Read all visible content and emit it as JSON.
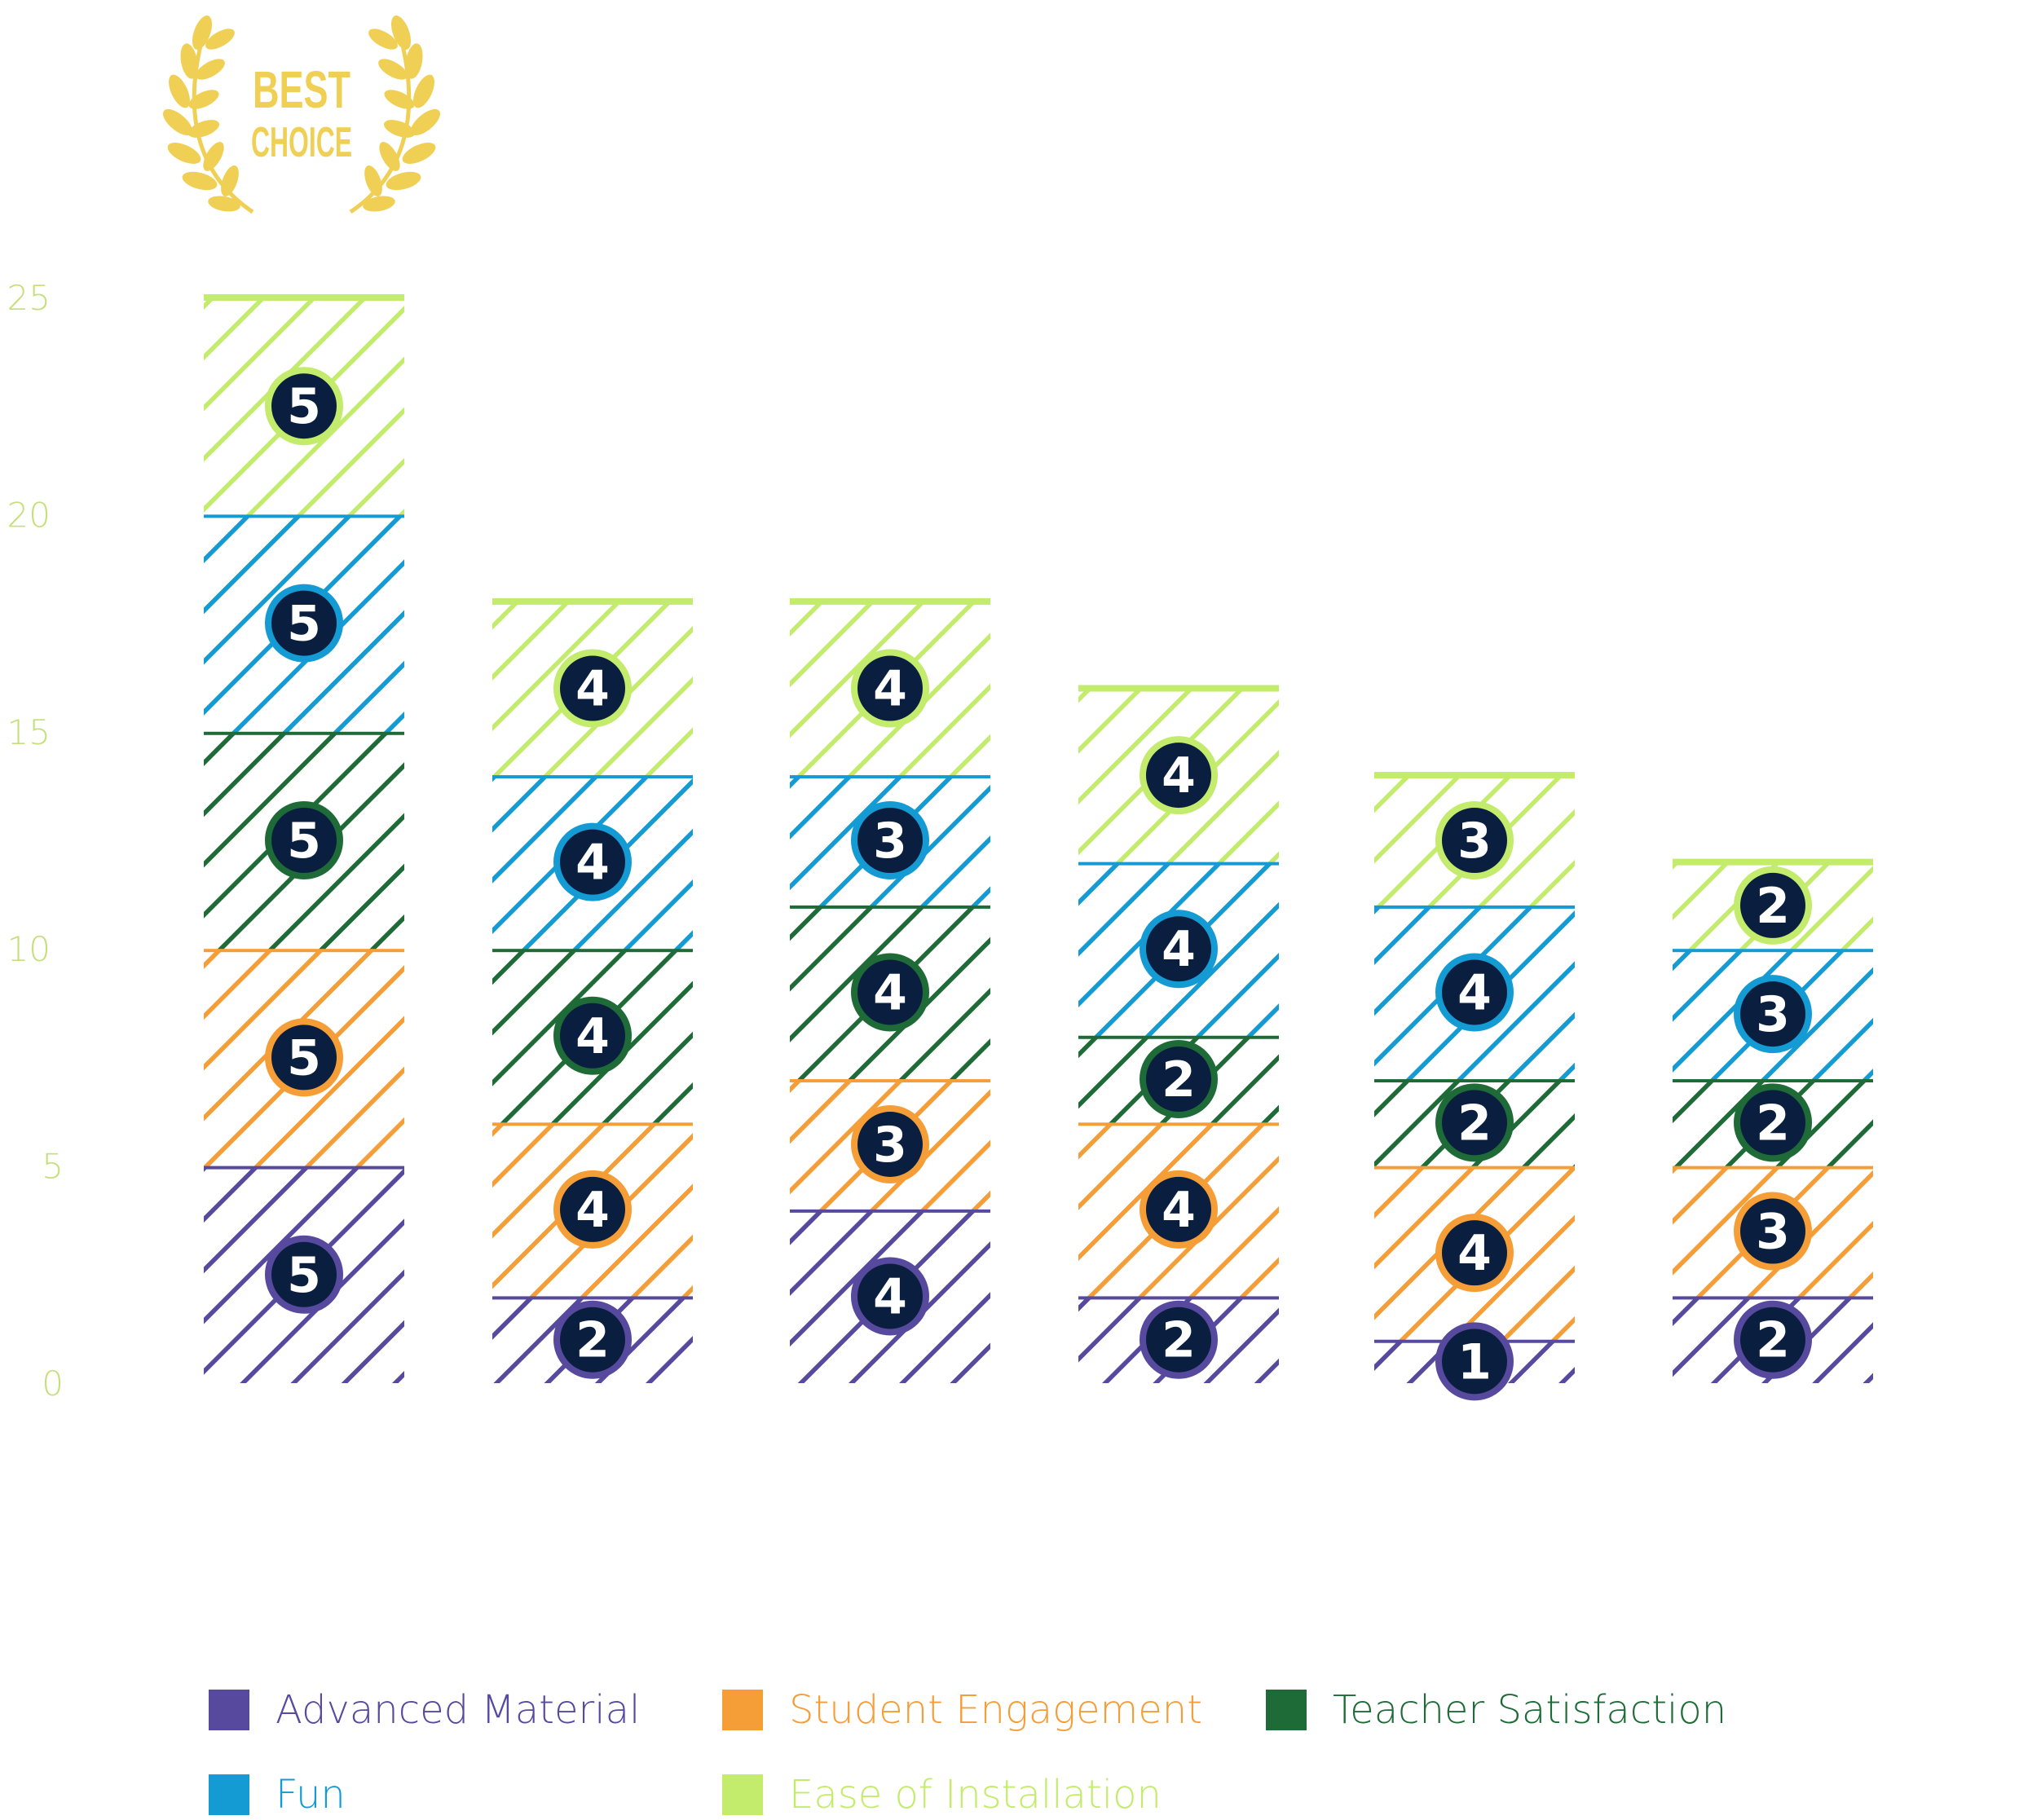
{
  "award": {
    "line1": "BEST",
    "line2": "CHOICE",
    "color": "#f0d054"
  },
  "chart_data": {
    "type": "bar",
    "stacked": true,
    "title": "",
    "xlabel": "",
    "ylabel": "",
    "ylim": [
      0,
      25
    ],
    "yticks": [
      0,
      5,
      10,
      15,
      20,
      25
    ],
    "ytick_labels": [
      "0",
      "5",
      "10",
      "15",
      "20",
      "25"
    ],
    "categories": [
      "",
      "",
      "",
      "",
      "",
      ""
    ],
    "grid": false,
    "legend_position": "bottom",
    "series": [
      {
        "name": "Advanced Material",
        "color": "#574a9e",
        "values": [
          5,
          2,
          4,
          2,
          1,
          2
        ]
      },
      {
        "name": "Student Engagement",
        "color": "#f59e38",
        "values": [
          5,
          4,
          3,
          4,
          4,
          3
        ]
      },
      {
        "name": "Teacher Satisfaction",
        "color": "#1e6b38",
        "values": [
          5,
          4,
          4,
          2,
          2,
          2
        ]
      },
      {
        "name": "Fun",
        "color": "#149bd4",
        "values": [
          5,
          4,
          3,
          4,
          4,
          3
        ]
      },
      {
        "name": "Ease of Installation",
        "color": "#c3eb6c",
        "values": [
          5,
          4,
          4,
          4,
          3,
          2
        ]
      }
    ],
    "badge_fill": "#0a1f3f",
    "axis_label_color": "#c3e07a"
  }
}
